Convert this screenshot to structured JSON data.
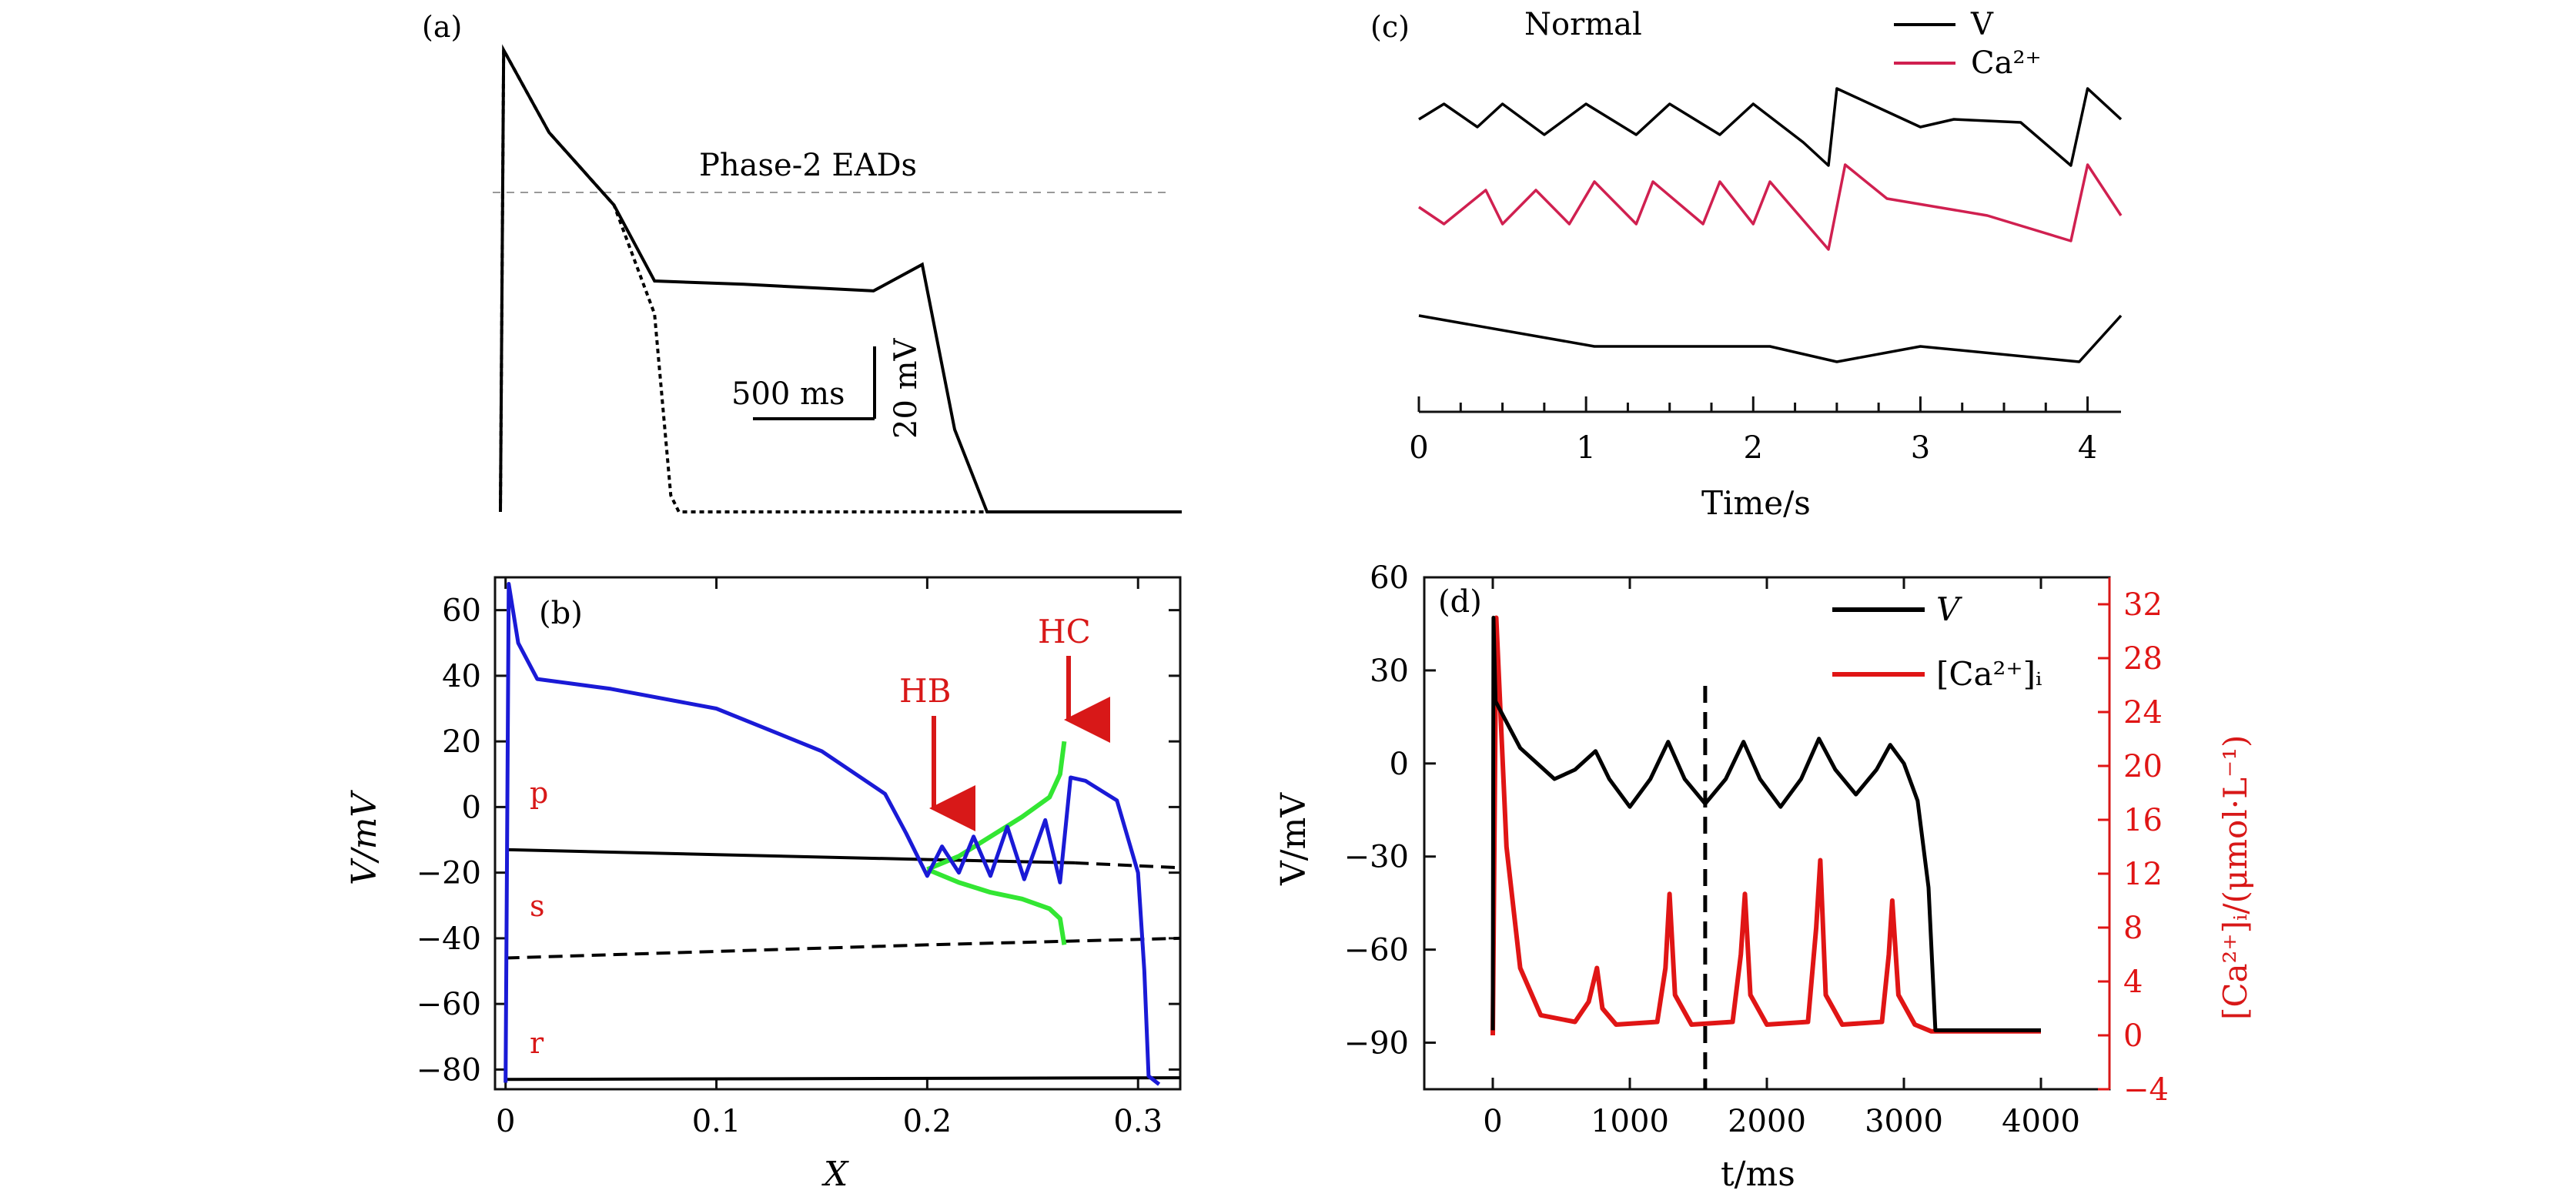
{
  "panels": {
    "a": {
      "label": "(a)",
      "annotation": "Phase-2 EADs",
      "scale_time": "500 ms",
      "scale_volt": "20 mV"
    },
    "b": {
      "label": "(b)",
      "ylabel": "V/mV",
      "xlabel": "X",
      "arrow_hb": "HB",
      "arrow_hc": "HC",
      "branch_p": "p",
      "branch_s": "s",
      "branch_r": "r"
    },
    "c": {
      "label": "(c)",
      "title": "Normal",
      "legend_v": "V",
      "legend_ca": "Ca²⁺",
      "xlabel": "Time/s"
    },
    "d": {
      "label": "(d)",
      "ylabel": "V/mV",
      "y2label": "[Ca²⁺]ᵢ/(μmol·L⁻¹)",
      "xlabel": "t/ms",
      "legend_v": "V",
      "legend_ca": "[Ca²⁺]ᵢ"
    }
  },
  "colors": {
    "voltage": "#000000",
    "bifurcation_blue": "#1a1ad6",
    "bifurcation_green": "#33e633",
    "calcium_red": "#e01515",
    "calcium_pink": "#d02050",
    "annotation_red": "#d81818",
    "axis": "#111111",
    "guide": "#999999"
  },
  "chart_data": [
    {
      "panel": "a",
      "type": "line",
      "series": [
        {
          "values": [
            [
              0,
              -85
            ],
            [
              20,
              55
            ],
            [
              300,
              30
            ],
            [
              700,
              8
            ],
            [
              950,
              -15
            ],
            [
              1500,
              -16
            ],
            [
              2300,
              -18
            ],
            [
              2600,
              -10
            ],
            [
              2800,
              -60
            ],
            [
              3000,
              -85
            ],
            [
              4200,
              -85
            ]
          ]
        },
        {
          "values": [
            [
              0,
              -85
            ],
            [
              20,
              55
            ],
            [
              300,
              30
            ],
            [
              700,
              8
            ],
            [
              950,
              -25
            ],
            [
              1050,
              -80
            ],
            [
              1100,
              -85
            ],
            [
              4200,
              -85
            ]
          ]
        }
      ],
      "threshold": 0
    },
    {
      "panel": "b",
      "type": "line",
      "xlim": [
        -0.005,
        0.32
      ],
      "ylim": [
        -86,
        70
      ],
      "xticks": [
        0,
        0.1,
        0.2,
        0.3
      ],
      "yticks": [
        60,
        40,
        20,
        0,
        -20,
        -40,
        -60,
        -80
      ],
      "series": [
        {
          "values": [
            [
              0,
              -84
            ],
            [
              0.0015,
              68
            ],
            [
              0.006,
              50
            ],
            [
              0.015,
              39
            ],
            [
              0.05,
              36
            ],
            [
              0.1,
              30
            ],
            [
              0.15,
              17
            ],
            [
              0.18,
              4
            ],
            [
              0.19,
              -8
            ],
            [
              0.2,
              -21
            ],
            [
              0.207,
              -12
            ],
            [
              0.215,
              -20
            ],
            [
              0.222,
              -9
            ],
            [
              0.23,
              -21
            ],
            [
              0.238,
              -6
            ],
            [
              0.246,
              -22
            ],
            [
              0.256,
              -4
            ],
            [
              0.263,
              -23
            ],
            [
              0.268,
              9
            ],
            [
              0.275,
              8
            ],
            [
              0.29,
              2
            ],
            [
              0.3,
              -20
            ],
            [
              0.303,
              -50
            ],
            [
              0.305,
              -82
            ],
            [
              0.31,
              -84.5
            ]
          ]
        },
        {
          "values": [
            [
              0.2,
              -19
            ],
            [
              0.215,
              -15
            ],
            [
              0.23,
              -9
            ],
            [
              0.245,
              -3
            ],
            [
              0.258,
              3
            ],
            [
              0.263,
              10
            ],
            [
              0.265,
              20
            ]
          ]
        },
        {
          "values": [
            [
              0.2,
              -19
            ],
            [
              0.215,
              -23
            ],
            [
              0.23,
              -26
            ],
            [
              0.245,
              -28
            ],
            [
              0.258,
              -31
            ],
            [
              0.263,
              -34
            ],
            [
              0.265,
              -42
            ]
          ]
        },
        {
          "values": [
            [
              0,
              -13
            ],
            [
              0.1,
              -14.5
            ],
            [
              0.2,
              -16
            ],
            [
              0.27,
              -17
            ]
          ]
        },
        {
          "values": [
            [
              0.27,
              -17
            ],
            [
              0.32,
              -18.5
            ]
          ]
        },
        {
          "values": [
            [
              0,
              -46
            ],
            [
              0.1,
              -44
            ],
            [
              0.2,
              -42
            ],
            [
              0.32,
              -40
            ]
          ]
        },
        {
          "values": [
            [
              0,
              -83
            ],
            [
              0.32,
              -82.5
            ]
          ]
        }
      ],
      "annotations": {
        "HB": [
          0.2,
          -19
        ],
        "HC": [
          0.265,
          20
        ]
      }
    },
    {
      "panel": "c",
      "type": "line",
      "xlim": [
        0,
        4.2
      ],
      "xticks": [
        0,
        1,
        2,
        3,
        4
      ],
      "series": [
        {
          "name": "V",
          "values": [
            [
              0,
              2
            ],
            [
              0.15,
              3
            ],
            [
              0.35,
              1.5
            ],
            [
              0.5,
              3
            ],
            [
              0.75,
              1
            ],
            [
              1.0,
              3
            ],
            [
              1.3,
              1
            ],
            [
              1.5,
              3
            ],
            [
              1.8,
              1
            ],
            [
              2.0,
              3
            ],
            [
              2.3,
              0.5
            ],
            [
              2.45,
              -1
            ],
            [
              2.5,
              4
            ],
            [
              2.8,
              2.5
            ],
            [
              3.0,
              1.5
            ],
            [
              3.2,
              2
            ],
            [
              3.6,
              1.8
            ],
            [
              3.9,
              -1
            ],
            [
              4.0,
              4
            ],
            [
              4.2,
              2
            ]
          ]
        },
        {
          "name": "Ca²⁺",
          "values": [
            [
              0,
              0.5
            ],
            [
              0.15,
              -0.5
            ],
            [
              0.4,
              1.5
            ],
            [
              0.5,
              -0.5
            ],
            [
              0.7,
              1.5
            ],
            [
              0.9,
              -0.5
            ],
            [
              1.05,
              2
            ],
            [
              1.3,
              -0.5
            ],
            [
              1.4,
              2
            ],
            [
              1.7,
              -0.5
            ],
            [
              1.8,
              2
            ],
            [
              2.0,
              -0.5
            ],
            [
              2.1,
              2
            ],
            [
              2.45,
              -2
            ],
            [
              2.55,
              3
            ],
            [
              2.8,
              1
            ],
            [
              3.1,
              0.5
            ],
            [
              3.4,
              0
            ],
            [
              3.9,
              -1.5
            ],
            [
              4.0,
              3
            ],
            [
              4.2,
              0
            ]
          ]
        },
        {
          "values": [
            [
              0,
              0
            ],
            [
              1.05,
              -1
            ],
            [
              1.4,
              -1
            ],
            [
              1.75,
              -1
            ],
            [
              2.1,
              -1
            ],
            [
              2.5,
              -1.5
            ],
            [
              3.0,
              -1
            ],
            [
              3.95,
              -1.5
            ],
            [
              4.2,
              0
            ]
          ]
        }
      ]
    },
    {
      "panel": "d",
      "type": "line",
      "xlim": [
        -500,
        4500
      ],
      "ylim": [
        -105,
        60
      ],
      "y2lim": [
        -4,
        34
      ],
      "xticks": [
        0,
        1000,
        2000,
        3000,
        4000
      ],
      "yticks": [
        60,
        30,
        0,
        -30,
        -60,
        -90
      ],
      "y2ticks": [
        32,
        28,
        24,
        20,
        16,
        12,
        8,
        4,
        0,
        -4
      ],
      "vline": 1550,
      "series": [
        {
          "name": "V",
          "axis": "left",
          "values": [
            [
              0,
              -86
            ],
            [
              5,
              47
            ],
            [
              20,
              20
            ],
            [
              200,
              5
            ],
            [
              450,
              -5
            ],
            [
              600,
              -2
            ],
            [
              750,
              4
            ],
            [
              850,
              -5
            ],
            [
              1000,
              -14
            ],
            [
              1150,
              -5
            ],
            [
              1280,
              7
            ],
            [
              1400,
              -5
            ],
            [
              1550,
              -13
            ],
            [
              1700,
              -5
            ],
            [
              1830,
              7
            ],
            [
              1950,
              -5
            ],
            [
              2100,
              -14
            ],
            [
              2250,
              -5
            ],
            [
              2380,
              8
            ],
            [
              2500,
              -2
            ],
            [
              2650,
              -10
            ],
            [
              2800,
              -2
            ],
            [
              2900,
              6
            ],
            [
              3000,
              0
            ],
            [
              3100,
              -12
            ],
            [
              3180,
              -40
            ],
            [
              3230,
              -86
            ],
            [
              4000,
              -86
            ]
          ]
        },
        {
          "name": "[Ca²⁺]ᵢ",
          "axis": "right",
          "values": [
            [
              0,
              0
            ],
            [
              25,
              31
            ],
            [
              100,
              14
            ],
            [
              200,
              5
            ],
            [
              350,
              1.5
            ],
            [
              600,
              1
            ],
            [
              700,
              2.5
            ],
            [
              760,
              5
            ],
            [
              800,
              2
            ],
            [
              900,
              0.8
            ],
            [
              1200,
              1
            ],
            [
              1260,
              5
            ],
            [
              1290,
              10.5
            ],
            [
              1330,
              3
            ],
            [
              1450,
              0.8
            ],
            [
              1750,
              1
            ],
            [
              1810,
              6
            ],
            [
              1840,
              10.5
            ],
            [
              1880,
              3
            ],
            [
              2000,
              0.8
            ],
            [
              2300,
              1
            ],
            [
              2360,
              8
            ],
            [
              2390,
              13
            ],
            [
              2430,
              3
            ],
            [
              2550,
              0.8
            ],
            [
              2840,
              1
            ],
            [
              2890,
              6
            ],
            [
              2915,
              10
            ],
            [
              2960,
              3
            ],
            [
              3080,
              0.8
            ],
            [
              3200,
              0.3
            ],
            [
              4000,
              0.3
            ]
          ]
        }
      ]
    }
  ]
}
